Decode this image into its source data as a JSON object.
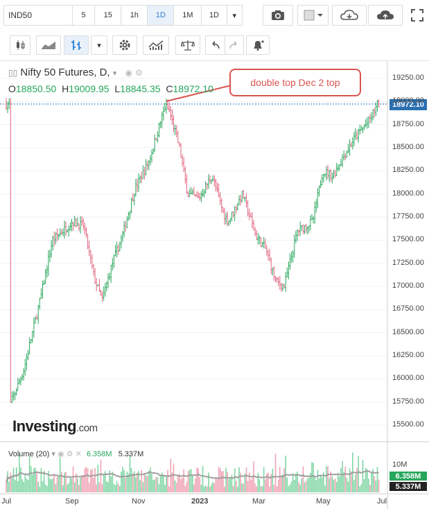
{
  "toolbar": {
    "symbol": "IND50",
    "intervals": [
      "5",
      "15",
      "1h",
      "1D",
      "1M",
      "1D"
    ],
    "active_interval_index": 3,
    "icons": [
      "camera-icon",
      "color-square-icon",
      "cloud-download-icon",
      "cloud-upload-icon",
      "fullscreen-icon"
    ]
  },
  "toolbar2": {
    "icons": [
      "candlestick-icon",
      "area-chart-icon",
      "bar-chart-icon",
      "chevron-down-icon",
      "gear-icon",
      "indicators-icon",
      "scales-icon",
      "undo-icon",
      "redo-icon",
      "alert-icon"
    ]
  },
  "chart_data": {
    "type": "line",
    "title": "Nifty 50 Futures, D,",
    "ohlc": {
      "o_label": "O",
      "o": "18850.50",
      "h_label": "H",
      "h": "19009.95",
      "l_label": "L",
      "l": "18845.35",
      "c_label": "C",
      "c": "18972.10"
    },
    "annotation": "double top Dec 2 top",
    "last_price": "18972.10",
    "yticks": [
      "19250.00",
      "19000.00",
      "18750.00",
      "18500.00",
      "18250.00",
      "18000.00",
      "17750.00",
      "17500.00",
      "17250.00",
      "17000.00",
      "16750.00",
      "16500.00",
      "16250.00",
      "16000.00",
      "15750.00",
      "15500.00"
    ],
    "ylim": [
      15350,
      19350
    ],
    "xticks": [
      "Jul",
      "Sep",
      "Nov",
      "2023",
      "Mar",
      "May",
      "Jul"
    ],
    "series": [
      {
        "x": [
          "2022-07-01",
          "2022-07-15",
          "2022-08-01",
          "2022-08-12",
          "2022-08-22",
          "2022-09-01",
          "2022-09-12",
          "2022-09-22",
          "2022-09-30",
          "2022-10-10",
          "2022-10-20",
          "2022-11-01",
          "2022-11-15",
          "2022-12-01",
          "2022-12-05",
          "2022-12-15",
          "2022-12-23",
          "2023-01-03",
          "2023-01-16",
          "2023-01-27",
          "2023-02-01",
          "2023-02-15",
          "2023-02-28",
          "2023-03-10",
          "2023-03-20",
          "2023-03-28",
          "2023-04-10",
          "2023-04-25",
          "2023-05-05",
          "2023-05-15",
          "2023-05-25",
          "2023-06-05",
          "2023-06-20",
          "2023-06-28"
        ],
        "values": [
          15700,
          16100,
          16900,
          17500,
          17600,
          17700,
          17650,
          17100,
          16850,
          17250,
          17550,
          18050,
          18350,
          18950,
          18900,
          18500,
          18000,
          17950,
          18200,
          17800,
          17700,
          18000,
          17550,
          17400,
          17050,
          17000,
          17600,
          17700,
          18250,
          18200,
          18400,
          18600,
          18800,
          18972
        ]
      }
    ],
    "volume": {
      "label": "Volume (20)",
      "value1": "6.358M",
      "value2": "5.337M",
      "axis_label": "10M"
    }
  },
  "watermark": {
    "brand": "Investing",
    "suffix": ".com"
  },
  "colors": {
    "up": "#26a65b",
    "down": "#e0607e",
    "ma": "#9e9e9e",
    "price_tag": "#2a6fb0",
    "callout": "#d9534f"
  }
}
